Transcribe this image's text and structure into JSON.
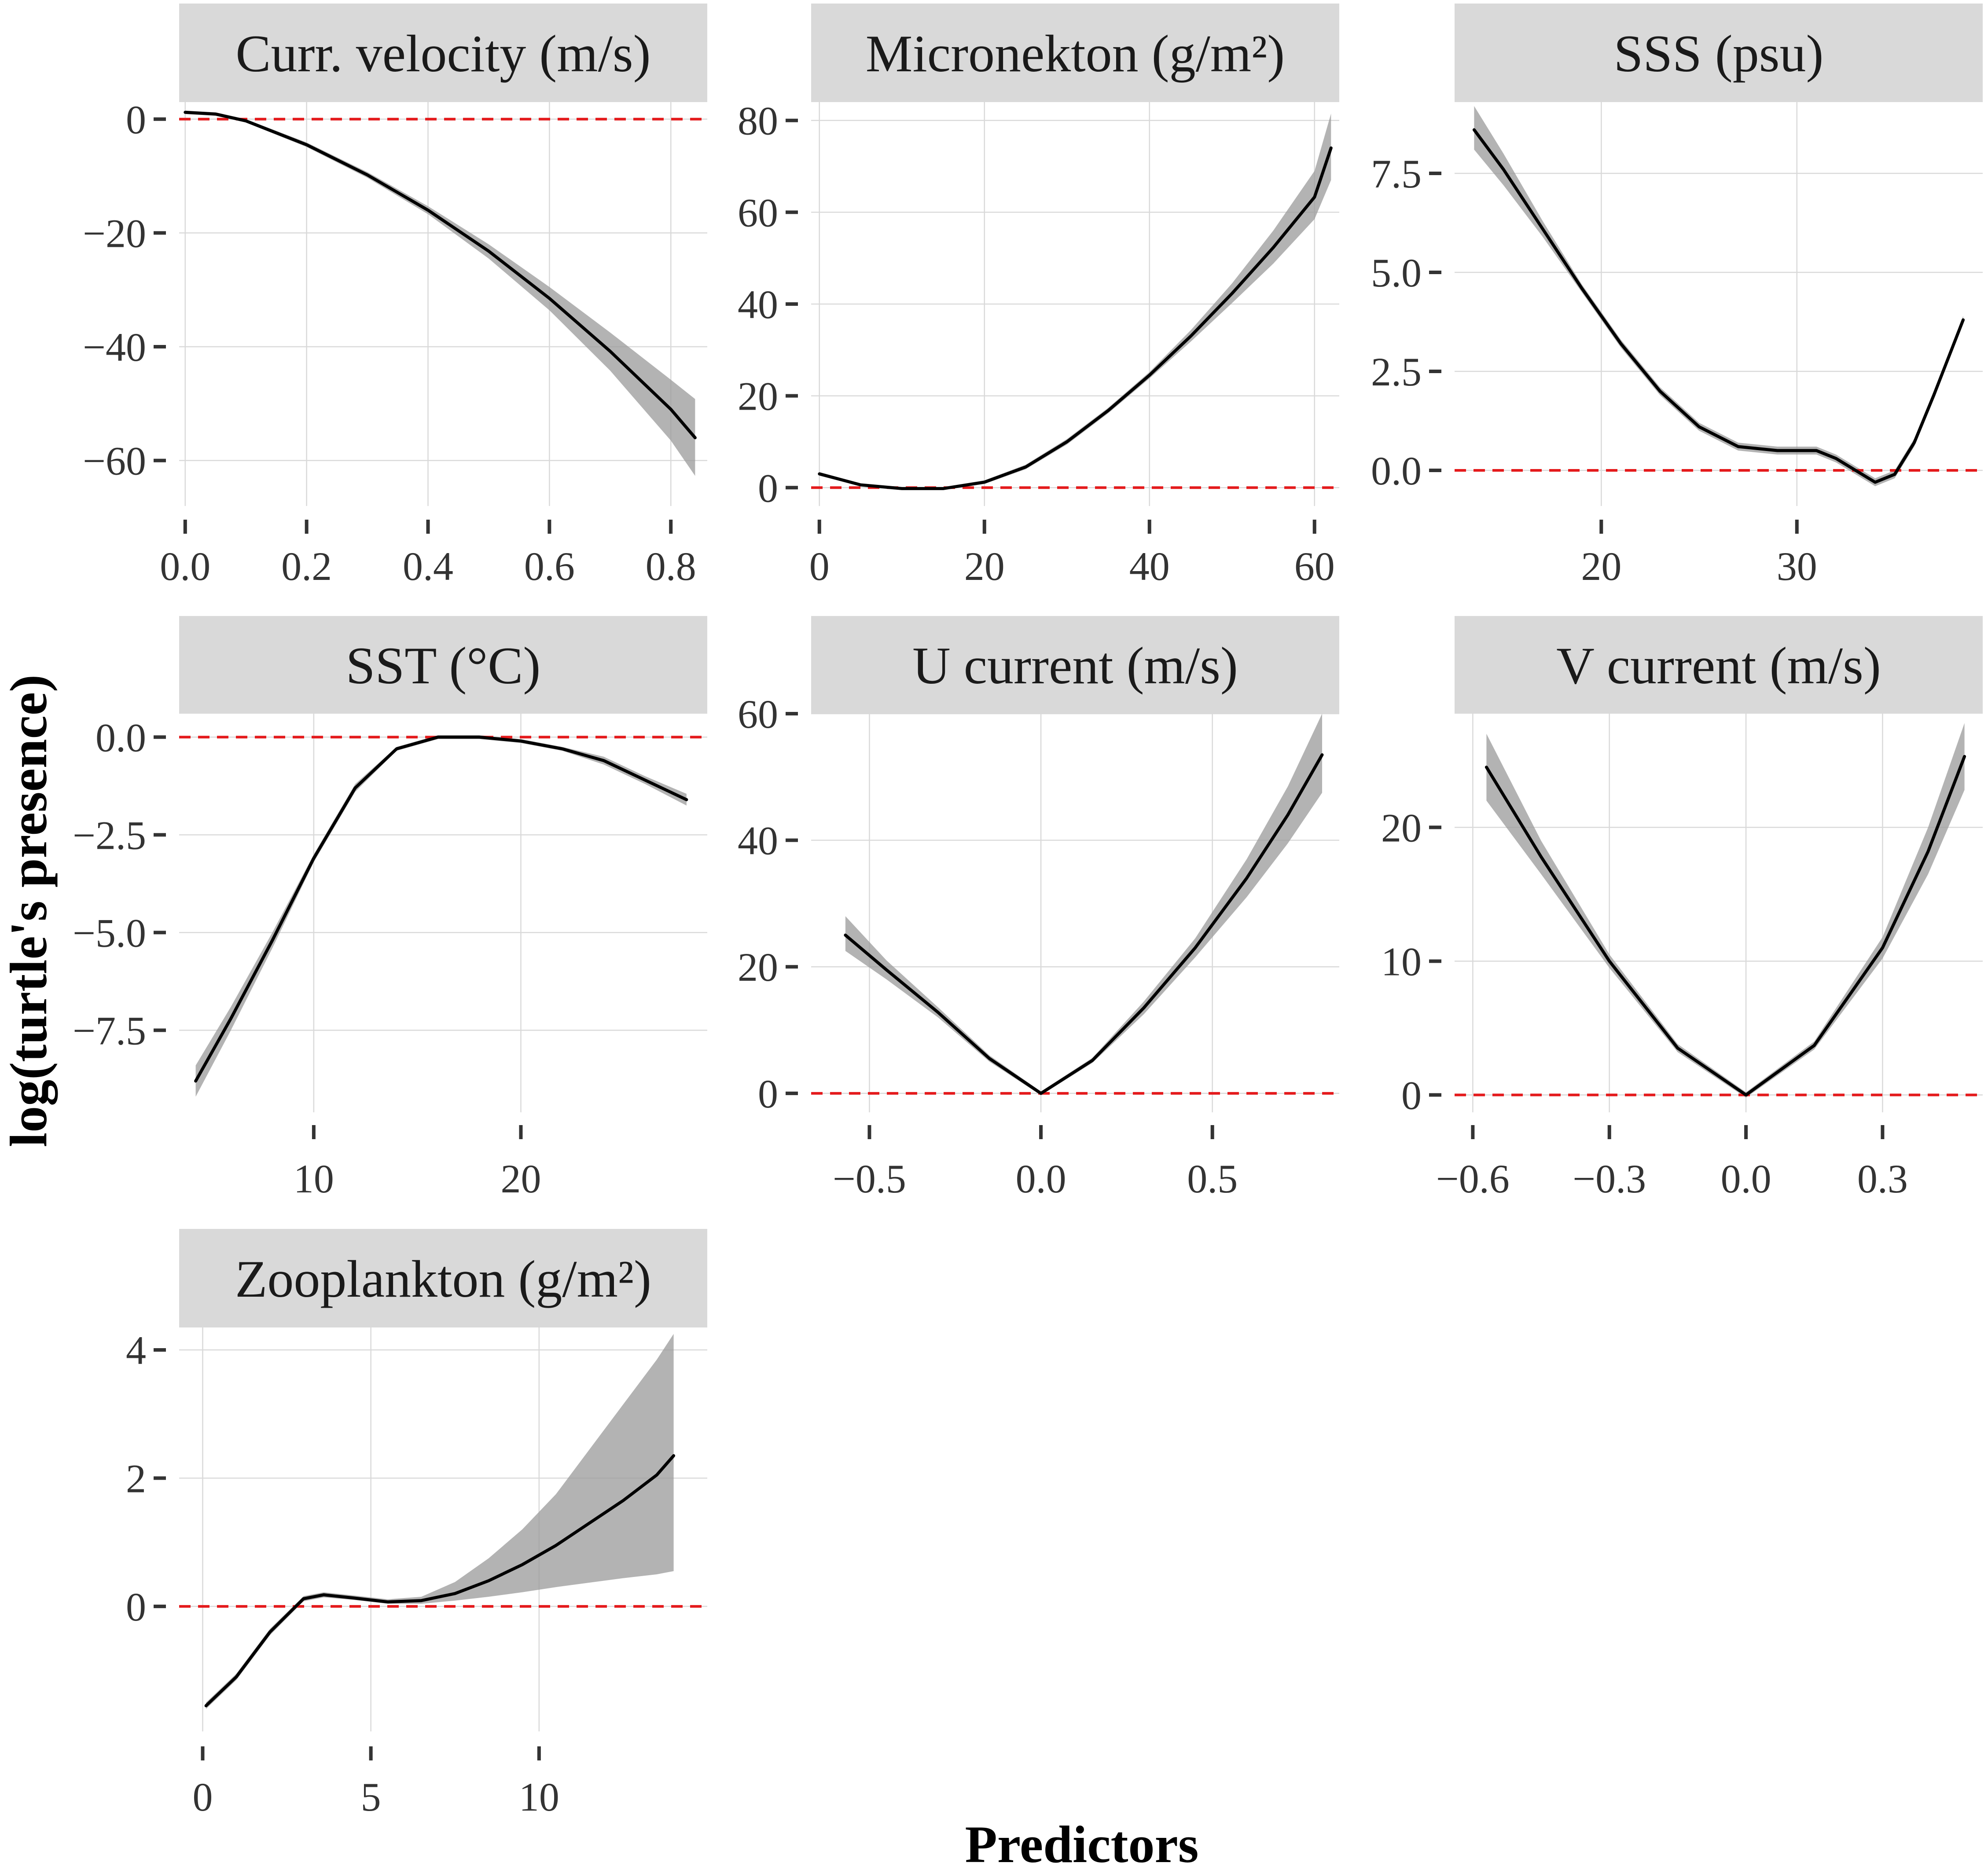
{
  "figure": {
    "ylabel": "log(turtle's presence)",
    "xlabel": "Predictors"
  },
  "colors": {
    "reference_line": "#e41a1c",
    "confidence_band": "#999999",
    "fit_line": "#000000",
    "strip_background": "#d9d9d9",
    "gridline": "#d9d9d9"
  },
  "chart_data": [
    {
      "type": "line",
      "title": "Curr. velocity (m/s)",
      "xlim": [
        -0.01,
        0.86
      ],
      "ylim": [
        -68,
        3
      ],
      "xticks": [
        0.0,
        0.2,
        0.4,
        0.6,
        0.8
      ],
      "xtick_labels": [
        "0.0",
        "0.2",
        "0.4",
        "0.6",
        "0.8"
      ],
      "yticks": [
        0,
        -20,
        -40,
        -60
      ],
      "ytick_labels": [
        "0",
        "−20",
        "−40",
        "−60"
      ],
      "reference_y": 0,
      "x": [
        0.0,
        0.05,
        0.1,
        0.2,
        0.3,
        0.4,
        0.5,
        0.6,
        0.7,
        0.8,
        0.84
      ],
      "fit": [
        1.2,
        0.9,
        -0.3,
        -4.5,
        -9.8,
        -16.0,
        -23.2,
        -31.5,
        -40.8,
        -51.0,
        -56.0
      ],
      "lower": [
        0.9,
        0.6,
        -0.6,
        -4.9,
        -10.3,
        -16.7,
        -24.5,
        -33.6,
        -44.2,
        -56.5,
        -62.7
      ],
      "upper": [
        1.5,
        1.2,
        0.0,
        -4.1,
        -9.3,
        -15.3,
        -22.0,
        -29.5,
        -37.5,
        -45.8,
        -49.2
      ]
    },
    {
      "type": "line",
      "title": "Micronekton (g/m²)",
      "xlim": [
        -1,
        63
      ],
      "ylim": [
        -4,
        84
      ],
      "xticks": [
        0,
        20,
        40,
        60
      ],
      "xtick_labels": [
        "0",
        "20",
        "40",
        "60"
      ],
      "yticks": [
        0,
        20,
        40,
        60,
        80
      ],
      "ytick_labels": [
        "0",
        "20",
        "40",
        "60",
        "80"
      ],
      "reference_y": 0,
      "x": [
        0,
        5,
        10,
        15,
        20,
        25,
        30,
        35,
        40,
        45,
        50,
        55,
        60,
        62
      ],
      "fit": [
        3.0,
        0.6,
        -0.2,
        -0.2,
        1.2,
        4.5,
        10.0,
        16.8,
        24.5,
        33.0,
        42.3,
        52.3,
        63.3,
        74.0
      ],
      "lower": [
        2.6,
        0.3,
        -0.5,
        -0.5,
        0.8,
        4.0,
        9.4,
        16.2,
        23.8,
        31.8,
        40.2,
        48.8,
        58.5,
        67.0
      ],
      "upper": [
        3.4,
        0.9,
        0.1,
        0.1,
        1.6,
        5.0,
        10.6,
        17.4,
        25.2,
        34.3,
        44.5,
        56.0,
        69.0,
        81.5
      ]
    },
    {
      "type": "line",
      "title": "SSS (psu)",
      "xlim": [
        12.5,
        39.5
      ],
      "ylim": [
        -0.9,
        9.3
      ],
      "xticks": [
        20,
        30
      ],
      "xtick_labels": [
        "20",
        "30"
      ],
      "yticks": [
        0.0,
        2.5,
        5.0,
        7.5
      ],
      "ytick_labels": [
        "0.0",
        "2.5",
        "5.0",
        "7.5"
      ],
      "reference_y": 0,
      "x": [
        13.5,
        15,
        17,
        19,
        21,
        23,
        25,
        27,
        29,
        31,
        32,
        33,
        34,
        35,
        36,
        37,
        38.5
      ],
      "fit": [
        8.6,
        7.6,
        6.1,
        4.6,
        3.2,
        2.0,
        1.1,
        0.6,
        0.5,
        0.5,
        0.3,
        0.0,
        -0.3,
        -0.1,
        0.7,
        1.9,
        3.8
      ],
      "lower": [
        8.1,
        7.2,
        5.9,
        4.5,
        3.1,
        1.9,
        1.0,
        0.5,
        0.4,
        0.4,
        0.2,
        -0.1,
        -0.4,
        -0.2,
        0.6,
        1.8,
        3.7
      ],
      "upper": [
        9.2,
        8.0,
        6.3,
        4.7,
        3.3,
        2.1,
        1.2,
        0.7,
        0.6,
        0.6,
        0.4,
        0.1,
        -0.2,
        0.0,
        0.8,
        2.0,
        3.9
      ]
    },
    {
      "type": "line",
      "title": "SST (°C)",
      "xlim": [
        3.5,
        29
      ],
      "ylim": [
        -9.6,
        0.6
      ],
      "xticks": [
        10,
        20
      ],
      "xtick_labels": [
        "10",
        "20"
      ],
      "yticks": [
        0.0,
        -2.5,
        -5.0,
        -7.5
      ],
      "ytick_labels": [
        "0.0",
        "−2.5",
        "−5.0",
        "−7.5"
      ],
      "reference_y": 0,
      "x": [
        4.3,
        6,
        8,
        10,
        12,
        14,
        16,
        18,
        20,
        22,
        24,
        26,
        28
      ],
      "fit": [
        -8.8,
        -7.2,
        -5.2,
        -3.1,
        -1.3,
        -0.3,
        0.0,
        0.0,
        -0.1,
        -0.3,
        -0.6,
        -1.1,
        -1.6
      ],
      "lower": [
        -9.2,
        -7.5,
        -5.4,
        -3.2,
        -1.4,
        -0.35,
        -0.05,
        -0.05,
        -0.15,
        -0.35,
        -0.7,
        -1.2,
        -1.75
      ],
      "upper": [
        -8.4,
        -6.9,
        -5.0,
        -3.0,
        -1.2,
        -0.25,
        0.05,
        0.05,
        -0.05,
        -0.25,
        -0.5,
        -1.0,
        -1.45
      ]
    },
    {
      "type": "line",
      "title": "U current (m/s)",
      "xlim": [
        -0.67,
        0.87
      ],
      "ylim": [
        -3,
        60
      ],
      "xticks": [
        -0.5,
        0.0,
        0.5
      ],
      "xtick_labels": [
        "−0.5",
        "0.0",
        "0.5"
      ],
      "yticks": [
        0,
        20,
        40,
        60
      ],
      "ytick_labels": [
        "0",
        "20",
        "40",
        "60"
      ],
      "reference_y": 0,
      "x": [
        -0.57,
        -0.45,
        -0.3,
        -0.15,
        0.0,
        0.15,
        0.3,
        0.45,
        0.6,
        0.72,
        0.82
      ],
      "fit": [
        25.0,
        19.5,
        12.8,
        5.5,
        0.0,
        5.2,
        13.5,
        23.0,
        34.0,
        44.0,
        53.5
      ],
      "lower": [
        22.5,
        18.0,
        12.0,
        5.0,
        -0.3,
        4.8,
        12.5,
        21.5,
        31.0,
        39.5,
        47.5
      ],
      "upper": [
        28.0,
        21.0,
        13.6,
        6.0,
        0.3,
        5.6,
        14.5,
        24.5,
        37.0,
        48.5,
        60.0
      ]
    },
    {
      "type": "line",
      "title": "V current (m/s)",
      "xlim": [
        -0.64,
        0.52
      ],
      "ylim": [
        -1.3,
        28.5
      ],
      "xticks": [
        -0.6,
        -0.3,
        0.0,
        0.3
      ],
      "xtick_labels": [
        "−0.6",
        "−0.3",
        "0.0",
        "0.3"
      ],
      "yticks": [
        0,
        10,
        20
      ],
      "ytick_labels": [
        "0",
        "10",
        "20"
      ],
      "reference_y": 0,
      "x": [
        -0.57,
        -0.45,
        -0.3,
        -0.15,
        0.0,
        0.15,
        0.3,
        0.4,
        0.48
      ],
      "fit": [
        24.5,
        17.8,
        10.0,
        3.5,
        0.0,
        3.7,
        11.0,
        18.2,
        25.3
      ],
      "lower": [
        22.0,
        16.5,
        9.5,
        3.2,
        -0.2,
        3.4,
        10.2,
        16.5,
        22.8
      ],
      "upper": [
        27.0,
        19.0,
        10.5,
        3.8,
        0.2,
        4.0,
        11.8,
        20.0,
        27.8
      ]
    },
    {
      "type": "line",
      "title": "Zooplankton (g/m²)",
      "xlim": [
        -0.7,
        15
      ],
      "ylim": [
        -1.95,
        4.35
      ],
      "xticks": [
        0,
        5,
        10
      ],
      "xtick_labels": [
        "0",
        "5",
        "10"
      ],
      "yticks": [
        0,
        2,
        4
      ],
      "ytick_labels": [
        "0",
        "2",
        "4"
      ],
      "reference_y": 0,
      "x": [
        0.1,
        1,
        2,
        3,
        3.6,
        4.5,
        5.5,
        6.5,
        7.5,
        8.5,
        9.5,
        10.5,
        11.5,
        12.5,
        13.5,
        14
      ],
      "fit": [
        -1.55,
        -1.1,
        -0.4,
        0.12,
        0.18,
        0.13,
        0.07,
        0.09,
        0.2,
        0.4,
        0.65,
        0.95,
        1.3,
        1.65,
        2.05,
        2.35
      ],
      "lower": [
        -1.6,
        -1.15,
        -0.45,
        0.08,
        0.14,
        0.1,
        0.04,
        0.04,
        0.09,
        0.15,
        0.22,
        0.3,
        0.37,
        0.44,
        0.5,
        0.55
      ],
      "upper": [
        -1.5,
        -1.05,
        -0.35,
        0.16,
        0.22,
        0.17,
        0.11,
        0.15,
        0.38,
        0.75,
        1.2,
        1.75,
        2.45,
        3.15,
        3.85,
        4.25
      ]
    }
  ]
}
